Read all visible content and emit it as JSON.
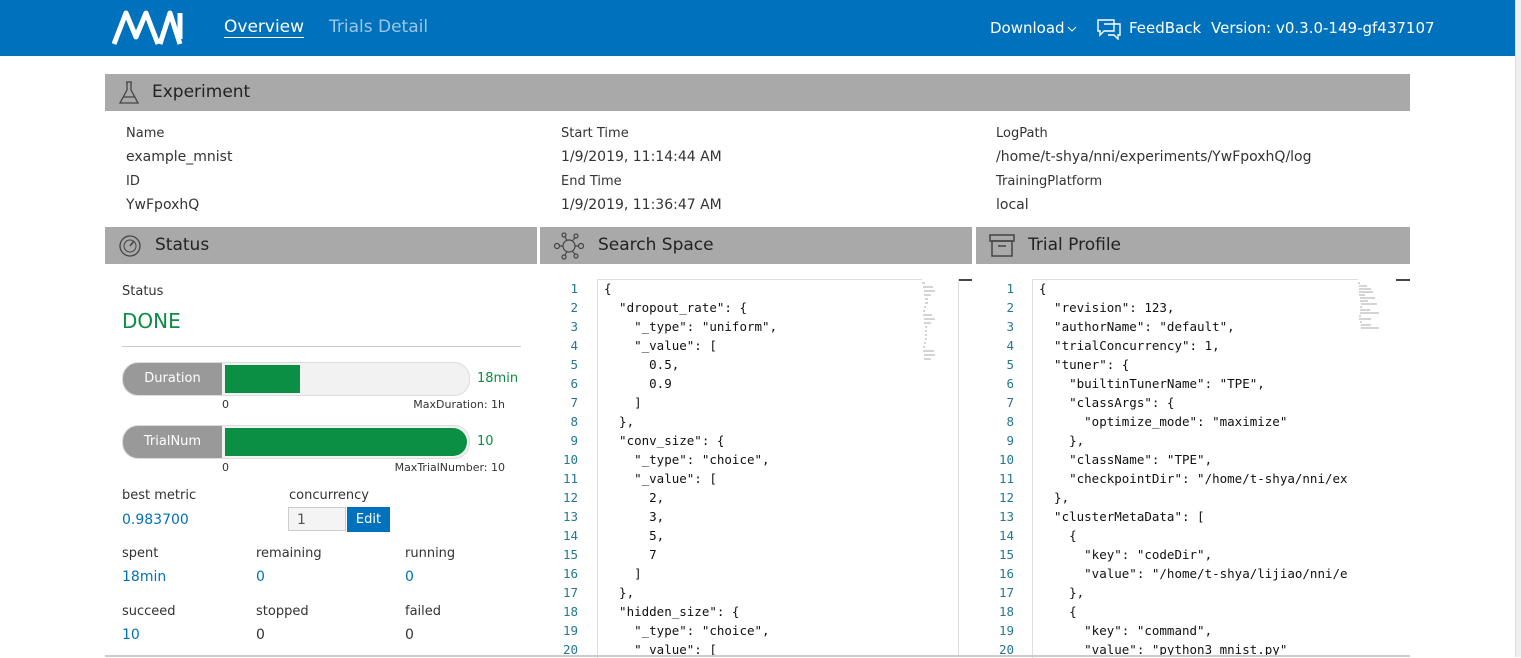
{
  "header": {
    "nav": [
      "Overview",
      "Trials Detail"
    ],
    "download": "Download",
    "feedback": "FeedBack",
    "version": "Version: v0.3.0-149-gf437107"
  },
  "experiment": {
    "title": "Experiment",
    "fields": [
      {
        "label": "Name",
        "value": "example_mnist"
      },
      {
        "label": "ID",
        "value": "YwFpoxhQ"
      },
      {
        "label": "Start Time",
        "value": "1/9/2019, 11:14:44 AM"
      },
      {
        "label": "End Time",
        "value": "1/9/2019, 11:36:47 AM"
      },
      {
        "label": "LogPath",
        "value": "/home/t-shya/nni/experiments/YwFpoxhQ/log"
      },
      {
        "label": "TrainingPlatform",
        "value": "local"
      }
    ]
  },
  "status": {
    "title": "Status",
    "status_label": "Status",
    "status_value": "DONE",
    "progress": [
      {
        "label": "Duration",
        "value": "18min",
        "min": "0",
        "max": "MaxDuration: 1h"
      },
      {
        "label": "TrialNum",
        "value": "10",
        "min": "0",
        "max": "MaxTrialNumber: 10"
      }
    ],
    "best_metric": {
      "label": "best metric",
      "value": "0.983700"
    },
    "concurrency": {
      "label": "concurrency",
      "value": "1",
      "button": "Edit"
    },
    "stats": [
      {
        "label": "spent",
        "value": "18min"
      },
      {
        "label": "remaining",
        "value": "0"
      },
      {
        "label": "running",
        "value": "0"
      },
      {
        "label": "succeed",
        "value": "10"
      },
      {
        "label": "stopped",
        "value": "0"
      },
      {
        "label": "failed",
        "value": "0"
      }
    ]
  },
  "search_space": {
    "title": "Search Space",
    "lines": [
      {
        "n": 1,
        "code": "{"
      },
      {
        "n": 2,
        "code": "  \"dropout_rate\": {"
      },
      {
        "n": 3,
        "code": "    \"_type\": \"uniform\","
      },
      {
        "n": 4,
        "code": "    \"_value\": ["
      },
      {
        "n": 5,
        "code": "      0.5,"
      },
      {
        "n": 6,
        "code": "      0.9"
      },
      {
        "n": 7,
        "code": "    ]"
      },
      {
        "n": 8,
        "code": "  },"
      },
      {
        "n": 9,
        "code": "  \"conv_size\": {"
      },
      {
        "n": 10,
        "code": "    \"_type\": \"choice\","
      },
      {
        "n": 11,
        "code": "    \"_value\": ["
      },
      {
        "n": 12,
        "code": "      2,"
      },
      {
        "n": 13,
        "code": "      3,"
      },
      {
        "n": 14,
        "code": "      5,"
      },
      {
        "n": 15,
        "code": "      7"
      },
      {
        "n": 16,
        "code": "    ]"
      },
      {
        "n": 17,
        "code": "  },"
      },
      {
        "n": 18,
        "code": "  \"hidden_size\": {"
      },
      {
        "n": 19,
        "code": "    \"_type\": \"choice\","
      },
      {
        "n": 20,
        "code": "    \"_value\": ["
      }
    ]
  },
  "trial_profile": {
    "title": "Trial Profile",
    "lines": [
      {
        "n": 1,
        "code": "{"
      },
      {
        "n": 2,
        "code": "  \"revision\": 123,"
      },
      {
        "n": 3,
        "code": "  \"authorName\": \"default\","
      },
      {
        "n": 4,
        "code": "  \"trialConcurrency\": 1,"
      },
      {
        "n": 5,
        "code": "  \"tuner\": {"
      },
      {
        "n": 6,
        "code": "    \"builtinTunerName\": \"TPE\","
      },
      {
        "n": 7,
        "code": "    \"classArgs\": {"
      },
      {
        "n": 8,
        "code": "      \"optimize_mode\": \"maximize\""
      },
      {
        "n": 9,
        "code": "    },"
      },
      {
        "n": 10,
        "code": "    \"className\": \"TPE\","
      },
      {
        "n": 11,
        "code": "    \"checkpointDir\": \"/home/t-shya/nni/ex"
      },
      {
        "n": 12,
        "code": "  },"
      },
      {
        "n": 13,
        "code": "  \"clusterMetaData\": ["
      },
      {
        "n": 14,
        "code": "    {"
      },
      {
        "n": 15,
        "code": "      \"key\": \"codeDir\","
      },
      {
        "n": 16,
        "code": "      \"value\": \"/home/t-shya/lijiao/nni/e"
      },
      {
        "n": 17,
        "code": "    },"
      },
      {
        "n": 18,
        "code": "    {"
      },
      {
        "n": 19,
        "code": "      \"key\": \"command\","
      },
      {
        "n": 20,
        "code": "      \"value\": \"python3 mnist.py\""
      }
    ]
  }
}
